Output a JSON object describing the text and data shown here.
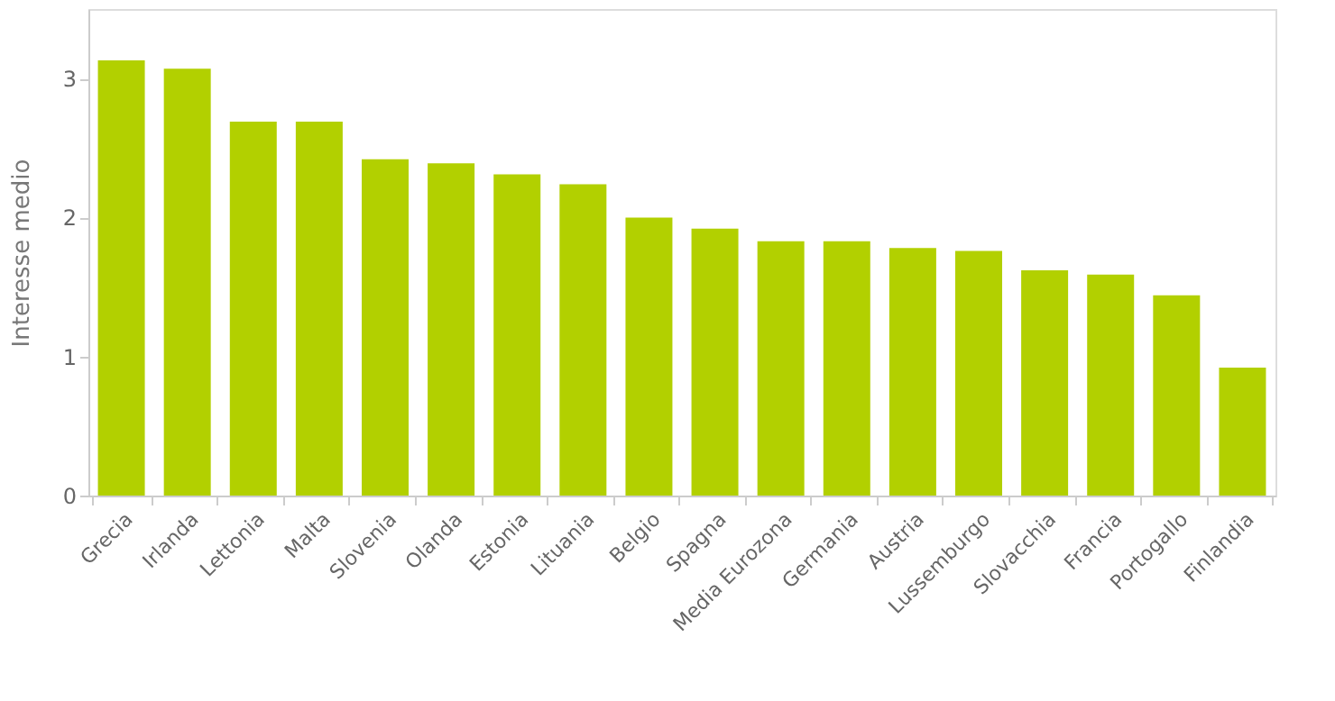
{
  "chart_data": {
    "type": "bar",
    "ylabel": "Interesse medio",
    "categories": [
      "Grecia",
      "Irlanda",
      "Lettonia",
      "Malta",
      "Slovenia",
      "Olanda",
      "Estonia",
      "Lituania",
      "Belgio",
      "Spagna",
      "Media Eurozona",
      "Germania",
      "Austria",
      "Lussemburgo",
      "Slovacchia",
      "Francia",
      "Portogallo",
      "Finlandia"
    ],
    "values": [
      3.13,
      3.07,
      2.69,
      2.69,
      2.42,
      2.39,
      2.31,
      2.24,
      2.0,
      1.92,
      1.83,
      1.83,
      1.78,
      1.76,
      1.62,
      1.59,
      1.44,
      0.92
    ],
    "color": "#b2d000",
    "ylim": [
      0,
      3.5
    ],
    "yticks": [
      0,
      1,
      2,
      3
    ],
    "grid": false
  }
}
